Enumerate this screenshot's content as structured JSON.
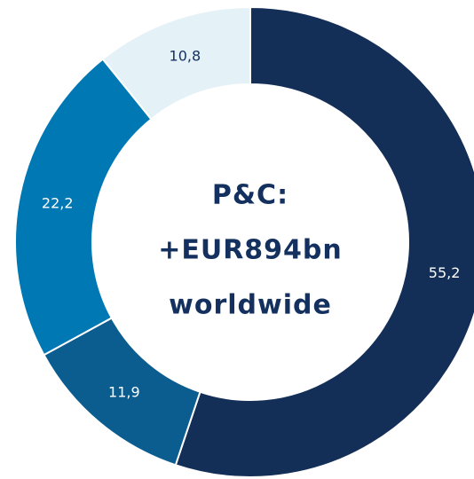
{
  "chart_data": {
    "type": "donut",
    "values": [
      55.2,
      11.9,
      22.2,
      10.8
    ],
    "value_labels": [
      "55,2",
      "11,9",
      "22,2",
      "10,8"
    ],
    "colors": [
      "#132e57",
      "#0b5c8f",
      "#0078b4",
      "#e4f1f6"
    ],
    "label_colors": [
      "#ffffff",
      "#ffffff",
      "#ffffff",
      "#13305e"
    ],
    "center_text": [
      "P&C:",
      "+EUR894bn",
      "worldwide"
    ]
  }
}
